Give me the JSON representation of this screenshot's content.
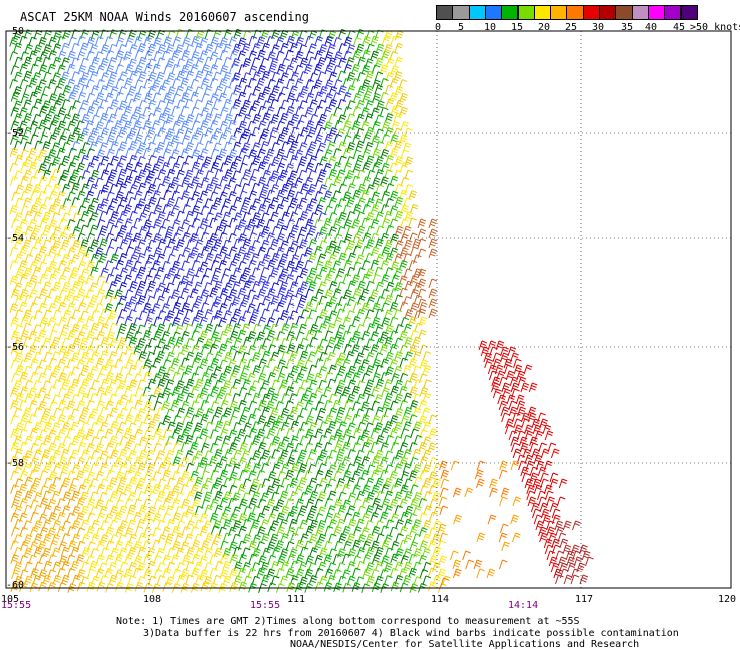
{
  "title": "ASCAT 25KM NOAA Winds 20160607 ascending",
  "legend": {
    "labels": [
      "0",
      "5",
      "10",
      "15",
      "20",
      "25",
      "30",
      "35",
      "40",
      "45",
      ">50 knots"
    ],
    "colors": [
      "#505050",
      "#9a9a9a",
      "#00c8ff",
      "#1e78ff",
      "#00b400",
      "#78dc00",
      "#ffe600",
      "#ffb400",
      "#ff7800",
      "#e60000",
      "#b40000",
      "#8c4a2a",
      "#c08ec0",
      "#ff00ff",
      "#a000c8",
      "#500078"
    ]
  },
  "axes": {
    "x_ticks": [
      "105",
      "108",
      "111",
      "114",
      "117",
      "120"
    ],
    "y_ticks": [
      "-50",
      "-52",
      "-54",
      "-56",
      "-58",
      "-60"
    ],
    "time_labels": [
      "15:55",
      "15:55",
      "14:14"
    ]
  },
  "notes": [
    "Note: 1) Times are GMT 2)Times along bottom correspond to measurement at ~55S",
    "3)Data buffer is 22 hrs from 20160607 4) Black wind barbs indicate possible contamination",
    "NOAA/NESDIS/Center for Satellite Applications and Research"
  ]
}
